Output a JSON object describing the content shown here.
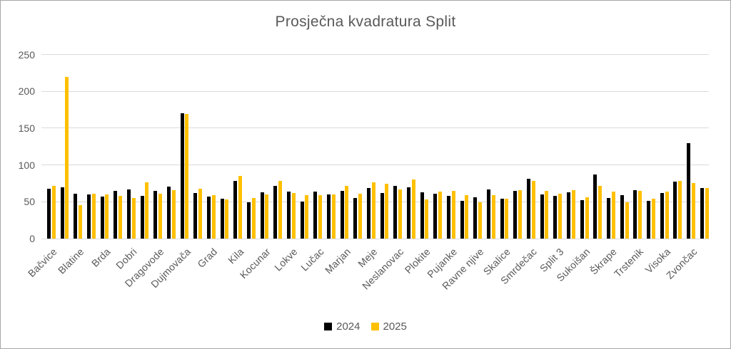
{
  "window": {
    "background": "#ffffff",
    "border_color": "#a6a6a6"
  },
  "chart_data": {
    "type": "bar",
    "title": "Prosječna kvadratura Split",
    "title_color": "#595959",
    "grid": true,
    "legend_position": "bottom",
    "legend": [
      {
        "label": "2024",
        "color": "#000000"
      },
      {
        "label": "2025",
        "color": "#ffc000"
      }
    ],
    "y_axis": {
      "min": 0,
      "max": 250,
      "tick_interval": 50,
      "ticks": [
        0,
        50,
        100,
        150,
        200,
        250
      ]
    },
    "x_axis": {
      "tick_label_rotation": 45,
      "labels_shown_every": 2,
      "visible_tick_labels": [
        "Bačvice",
        "Blatine",
        "Brda",
        "Dobri",
        "Dragovode",
        "Dujmovača",
        "Grad",
        "Kila",
        "Kocunar",
        "Lokve",
        "Lučac",
        "Marjan",
        "Meje",
        "Neslanovac",
        "Plokite",
        "Pujanke",
        "Ravne njive",
        "Skalice",
        "Smrdečac",
        "Split 3",
        "Sukoišan",
        "Škrape",
        "Trstenik",
        "Visoka",
        "Zvončac"
      ]
    },
    "categories": [
      "Bačvice",
      "",
      "Blatine",
      "",
      "Brda",
      "",
      "Dobri",
      "",
      "Dragovode",
      "",
      "Dujmovača",
      "",
      "Grad",
      "",
      "Kila",
      "",
      "Kocunar",
      "",
      "Lokve",
      "",
      "Lučac",
      "",
      "Marjan",
      "",
      "Meje",
      "",
      "Neslanovac",
      "",
      "Plokite",
      "",
      "Pujanke",
      "",
      "Ravne njive",
      "",
      "Skalice",
      "",
      "Smrdečac",
      "",
      "Split 3",
      "",
      "Sukoišan",
      "",
      "Škrape",
      "",
      "Trstenik",
      "",
      "Visoka",
      "",
      "Zvončac",
      ""
    ],
    "series": [
      {
        "name": "2024",
        "color": "#000000",
        "values": [
          68,
          70,
          61,
          60,
          57,
          65,
          67,
          58,
          65,
          71,
          170,
          62,
          57,
          54,
          78,
          49,
          63,
          72,
          64,
          50,
          64,
          60,
          65,
          55,
          69,
          62,
          72,
          70,
          63,
          61,
          58,
          51,
          56,
          67,
          54,
          65,
          81,
          60,
          58,
          63,
          52,
          87,
          55,
          59,
          66,
          51,
          62,
          77,
          130,
          69
        ]
      },
      {
        "name": "2025",
        "color": "#ffc000",
        "values": [
          72,
          220,
          45,
          61,
          60,
          58,
          55,
          76,
          61,
          66,
          169,
          68,
          59,
          53,
          85,
          55,
          60,
          78,
          62,
          59,
          59,
          60,
          72,
          61,
          76,
          74,
          67,
          80,
          53,
          64,
          65,
          59,
          49,
          59,
          54,
          66,
          78,
          65,
          61,
          66,
          56,
          72,
          64,
          49,
          65,
          54,
          64,
          78,
          75,
          69
        ]
      }
    ],
    "ylim": [
      0,
      250
    ]
  }
}
